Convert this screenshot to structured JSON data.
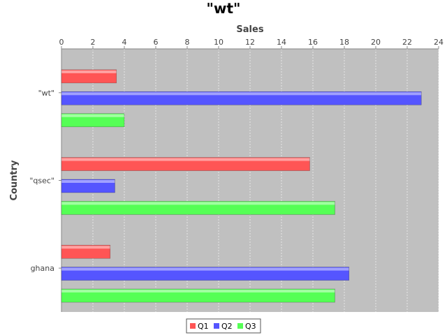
{
  "chart_data": {
    "type": "bar",
    "orientation": "horizontal",
    "title": "\"wt\"",
    "xlabel": "Sales",
    "ylabel": "Country",
    "xlim": [
      0,
      24
    ],
    "x_ticks": [
      0,
      2,
      4,
      6,
      8,
      10,
      12,
      14,
      16,
      18,
      20,
      22,
      24
    ],
    "grid": true,
    "legend_position": "bottom",
    "categories": [
      "\"wt\"",
      "\"qsec\"",
      "ghana"
    ],
    "series": [
      {
        "name": "Q1",
        "color": "#ff5555",
        "values": [
          3.5,
          15.8,
          3.1
        ]
      },
      {
        "name": "Q2",
        "color": "#5555ff",
        "values": [
          22.9,
          3.4,
          18.3
        ]
      },
      {
        "name": "Q3",
        "color": "#55ff55",
        "values": [
          4.0,
          17.4,
          17.4
        ]
      }
    ]
  }
}
